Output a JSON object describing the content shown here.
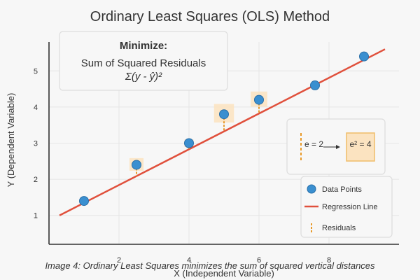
{
  "colors": {
    "background": "#f7f7f7",
    "points": "#3a8fd0",
    "points_edge": "#2a6fa8",
    "line": "#e0503c",
    "residual": "#e89a2a",
    "square_fill": "#fbe3c0",
    "square_edge": "#f0c070",
    "grid": "#e6e6e6",
    "axis": "#333333",
    "text": "#333333"
  },
  "chart_data": {
    "type": "scatter",
    "title": "Ordinary Least Squares (OLS) Method",
    "xlabel": "X (Independent Variable)",
    "ylabel": "Y (Dependent Variable)",
    "xlim": [
      0,
      10
    ],
    "ylim": [
      0.2,
      5.8
    ],
    "xticks": [
      2,
      4,
      6,
      8
    ],
    "yticks": [
      1,
      2,
      3,
      4,
      5
    ],
    "grid": true,
    "points": {
      "x": [
        1,
        2.5,
        4,
        5,
        6,
        7.6,
        9
      ],
      "y": [
        1.4,
        2.4,
        3.0,
        3.8,
        4.2,
        4.6,
        5.4
      ]
    },
    "regression_line": {
      "x": [
        0.3,
        9.6
      ],
      "y": [
        1.0,
        5.6
      ]
    },
    "legend": {
      "position": "lower-right",
      "entries": [
        "Data Points",
        "Regression Line",
        "Residuals"
      ]
    },
    "annotations": {
      "minimize_title": "Minimize:",
      "minimize_text": "Sum of Squared Residuals",
      "minimize_formula": "Σ(y - ŷ)²",
      "residual_example": "e = 2",
      "squared_example": "e² = 4"
    },
    "caption": "Image 4: Ordinary Least Squares minimizes the sum of squared vertical distances"
  }
}
